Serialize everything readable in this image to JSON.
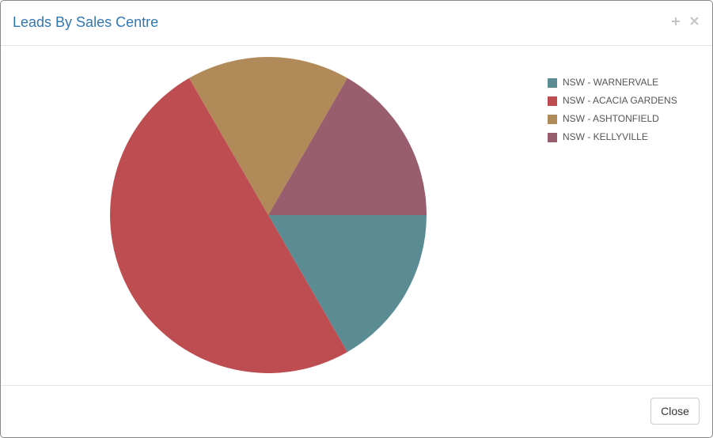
{
  "chart_data": {
    "type": "pie",
    "title": "Leads By Sales Centre",
    "categories": [
      "NSW - WARNERVALE",
      "NSW - ACACIA GARDENS",
      "NSW - ASHTONFIELD",
      "NSW - KELLYVILLE"
    ],
    "values": [
      1,
      3,
      1,
      1
    ],
    "colors": [
      "#5b8c93",
      "#be4d51",
      "#b08a58",
      "#995e6e"
    ],
    "legend": "top-right"
  },
  "footer": {
    "close_button": "Close"
  }
}
